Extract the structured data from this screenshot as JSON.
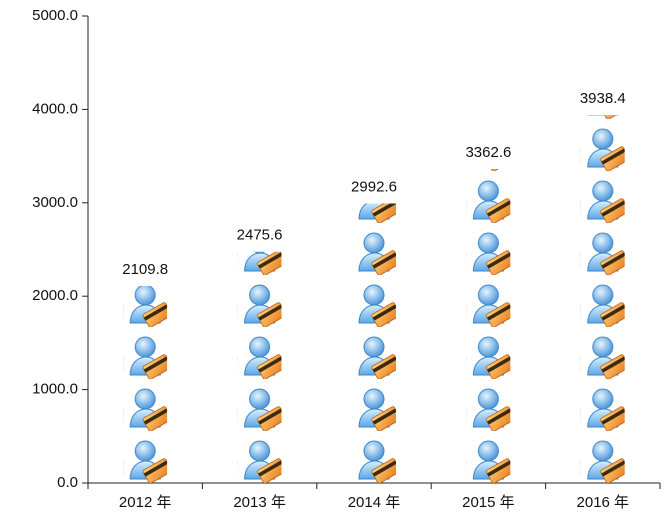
{
  "chart_data": {
    "type": "pictograph",
    "categories": [
      "2012 年",
      "2013 年",
      "2014 年",
      "2015 年",
      "2016 年"
    ],
    "values": [
      2109.8,
      2475.6,
      2992.6,
      3362.6,
      3938.4
    ],
    "ylim": [
      0,
      5000
    ],
    "yticks": [
      {
        "value": 0,
        "label": "0.0"
      },
      {
        "value": 1000,
        "label": "1000.0"
      },
      {
        "value": 2000,
        "label": "2000.0"
      },
      {
        "value": 3000,
        "label": "3000.0"
      },
      {
        "value": 4000,
        "label": "4000.0"
      },
      {
        "value": 5000,
        "label": "5000.0"
      }
    ],
    "grid": false
  }
}
